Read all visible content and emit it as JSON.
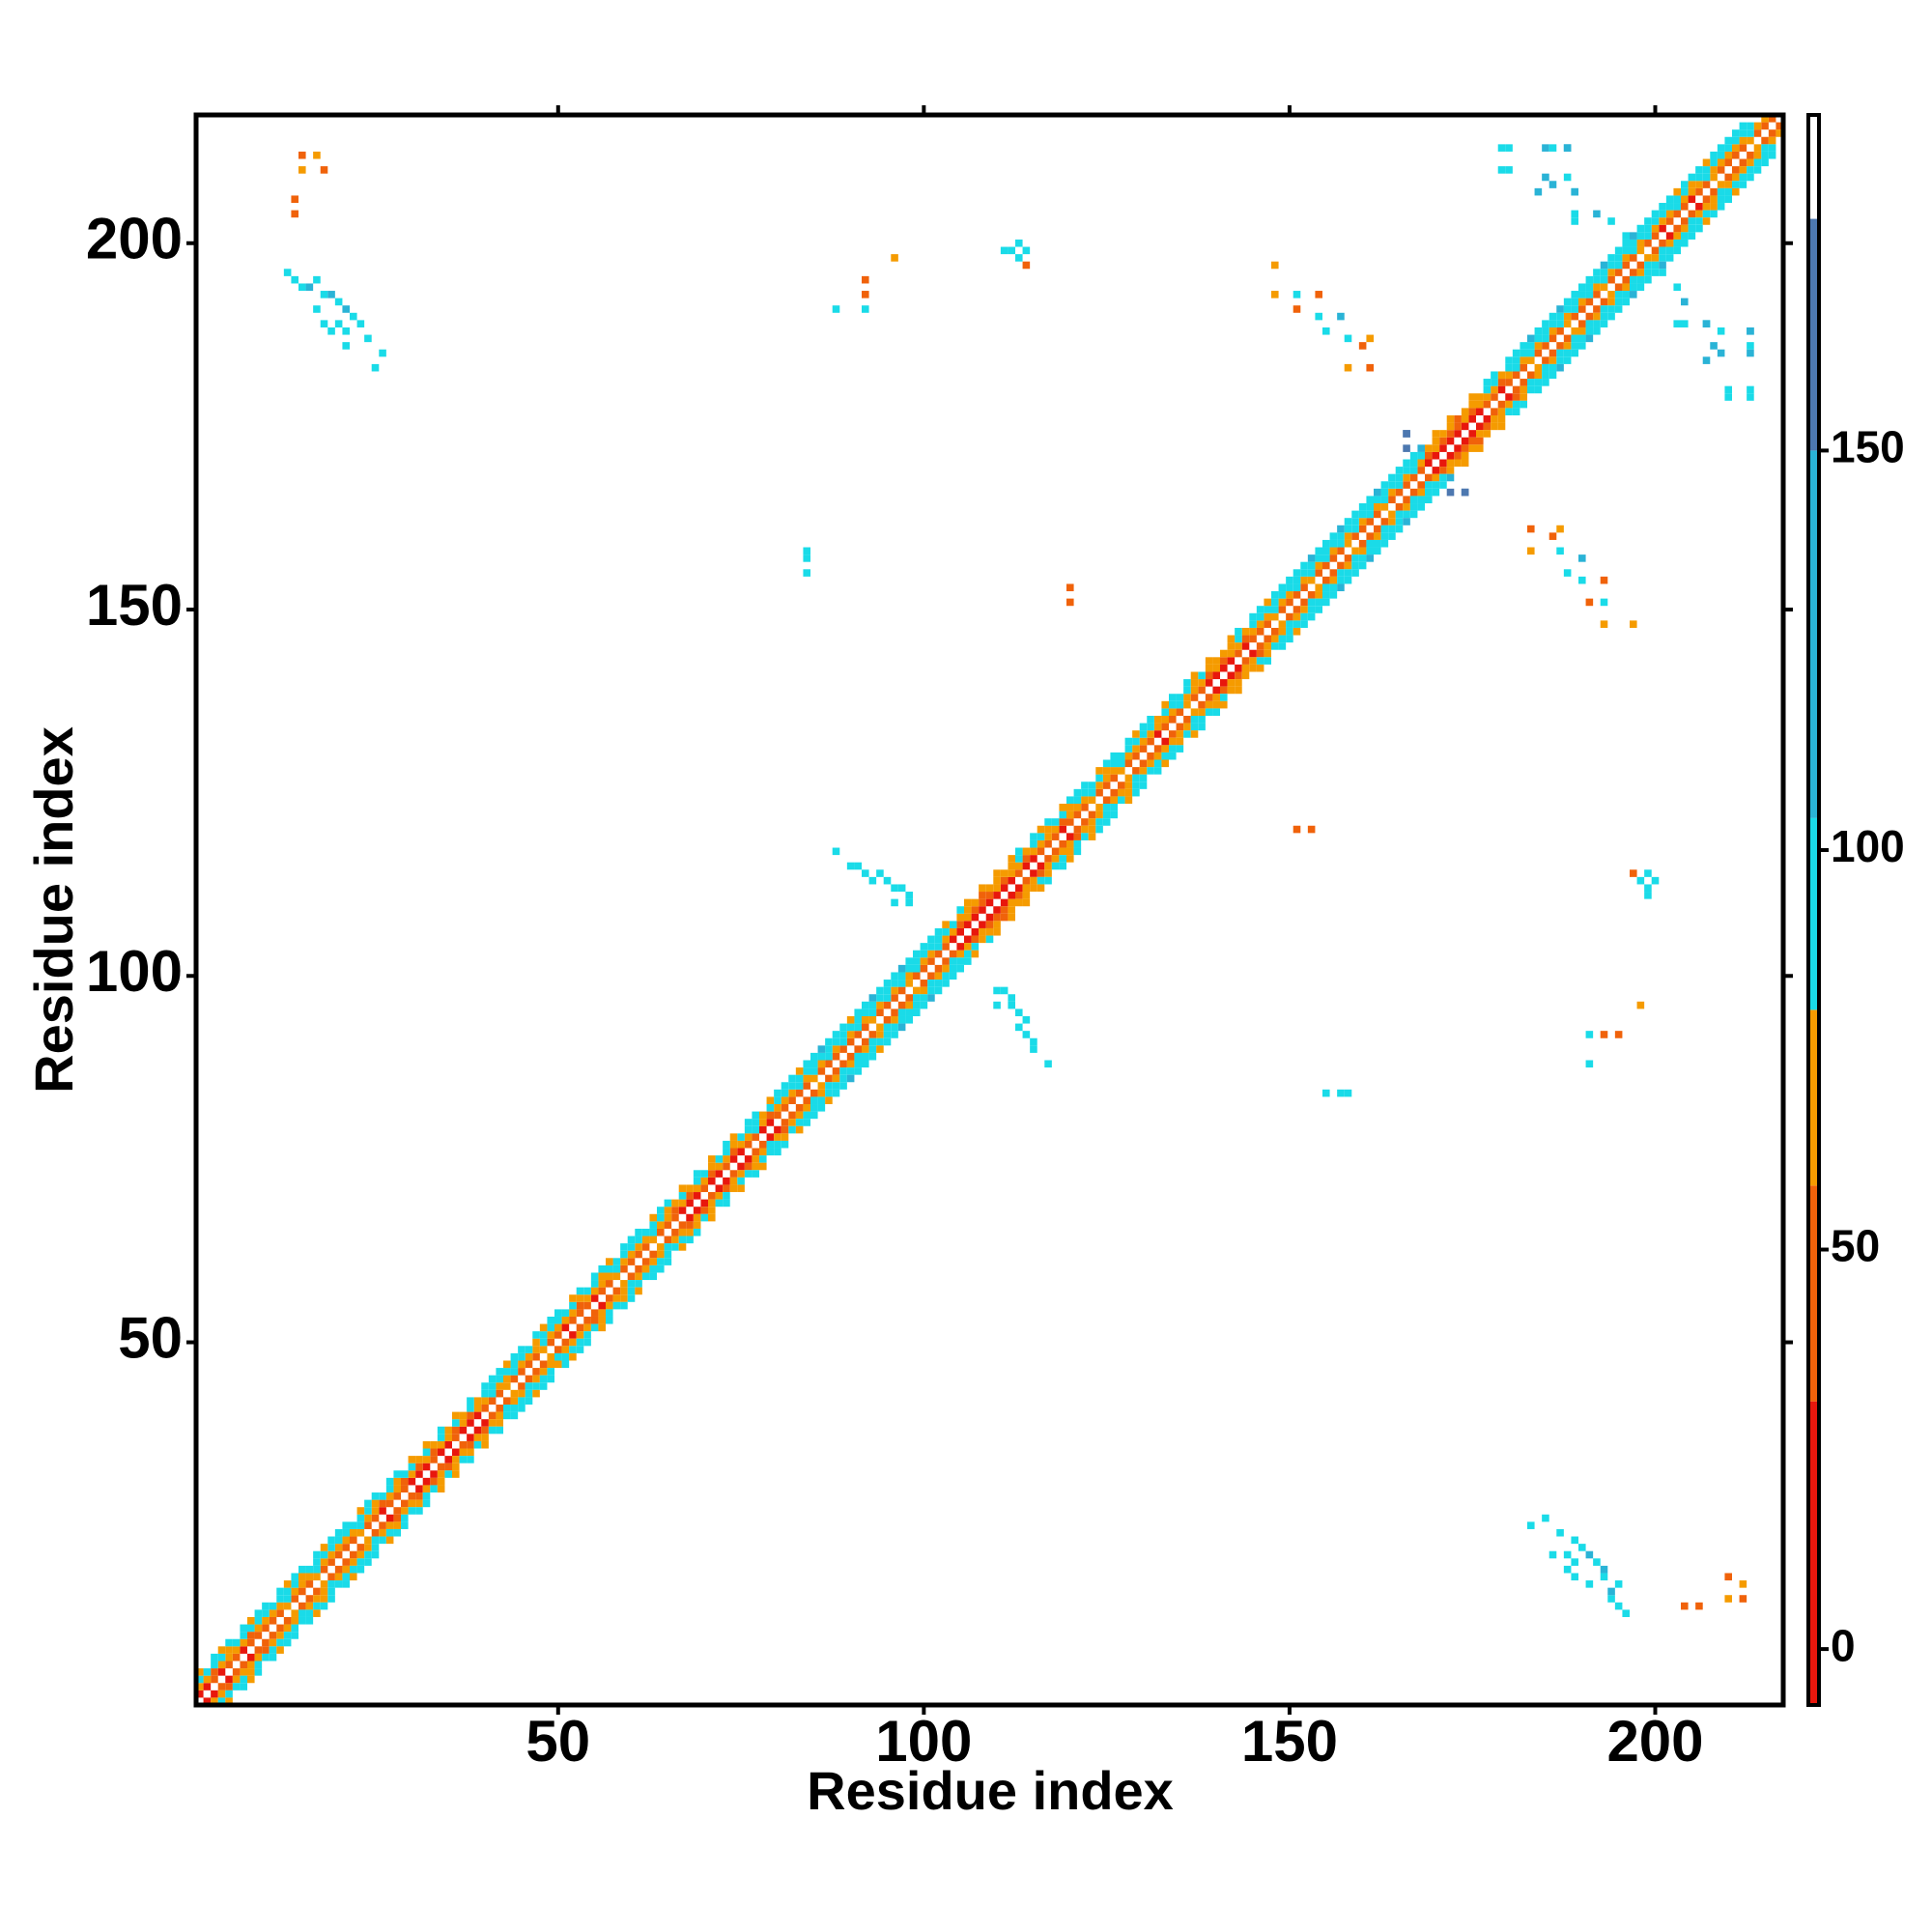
{
  "chart_data": {
    "type": "contact-map",
    "x_label": "Residue index",
    "y_label": "Residue index",
    "xlim": [
      0.5,
      217.5
    ],
    "ylim": [
      0.5,
      217.5
    ],
    "xticks": [
      50,
      100,
      150,
      200
    ],
    "yticks": [
      50,
      100,
      150,
      200
    ],
    "symmetric": true,
    "colorbar": {
      "lim": [
        -7,
        192
      ],
      "ticks": [
        0,
        50,
        100,
        150
      ],
      "segments": [
        {
          "from": -7,
          "to": 31,
          "color": "#e8170d"
        },
        {
          "from": 31,
          "to": 58,
          "color": "#f0620a"
        },
        {
          "from": 58,
          "to": 80,
          "color": "#f59b00"
        },
        {
          "from": 80,
          "to": 104,
          "color": "#1adbe8"
        },
        {
          "from": 104,
          "to": 150,
          "color": "#2ab3d6"
        },
        {
          "from": 150,
          "to": 179,
          "color": "#4d78b0"
        },
        {
          "from": 179,
          "to": 192,
          "color": "#ffffff"
        }
      ]
    },
    "residues": [
      1,
      2,
      3,
      4,
      5,
      6,
      7,
      8,
      9,
      10,
      11,
      12,
      13,
      14,
      15,
      16,
      17,
      18,
      19,
      20,
      21,
      22,
      23,
      24,
      25,
      26,
      27,
      28,
      29,
      30,
      31,
      32,
      33,
      34,
      35,
      36,
      37,
      38,
      39,
      40,
      41,
      42,
      43,
      44,
      45,
      46,
      47,
      48,
      49,
      50,
      51,
      52,
      53,
      54,
      55,
      56,
      57,
      58,
      59,
      60,
      61,
      62,
      63,
      64,
      65,
      66,
      67,
      68,
      69,
      70,
      71,
      72,
      73,
      74,
      75,
      76,
      77,
      78,
      79,
      80,
      81,
      82,
      83,
      84,
      85,
      86,
      87,
      88,
      89,
      90,
      91,
      92,
      93,
      94,
      95,
      96,
      97,
      98,
      99,
      100,
      101,
      102,
      103,
      104,
      105,
      106,
      107,
      108,
      109,
      110,
      111,
      112,
      113,
      114,
      115,
      116,
      117,
      118,
      119,
      120,
      121,
      122,
      123,
      124,
      125,
      126,
      127,
      128,
      129,
      130,
      131,
      132,
      133,
      134,
      135,
      136,
      137,
      138,
      139,
      140,
      141,
      142,
      143,
      144,
      145,
      146,
      147,
      148,
      149,
      150,
      151,
      152,
      153,
      154,
      155,
      156,
      157,
      158,
      159,
      160,
      161,
      162,
      163,
      164,
      165,
      166,
      167,
      168,
      169,
      170,
      171,
      172,
      173,
      174,
      175,
      176,
      177,
      178,
      179,
      180,
      181,
      182,
      183,
      184,
      185,
      186,
      187,
      188,
      189,
      190,
      191,
      192,
      193,
      194,
      195,
      196,
      197,
      198,
      199,
      200,
      201,
      202,
      203,
      204,
      205,
      206,
      207,
      208,
      209,
      210,
      211,
      212,
      213,
      214,
      215,
      216,
      217
    ],
    "band": {
      "offsets": [
        1,
        2,
        3,
        4
      ],
      "values": [
        [
          15,
          25,
          40,
          15,
          45,
          40,
          25,
          45,
          40,
          45,
          40,
          45,
          65,
          40,
          45,
          40,
          65,
          45,
          40,
          45,
          40,
          45,
          65,
          40,
          45,
          25,
          40,
          45,
          40,
          25,
          15,
          25,
          40,
          15,
          25,
          40,
          15,
          25,
          15,
          40,
          45,
          40,
          65,
          45,
          40,
          45,
          40,
          65,
          45,
          40,
          25,
          40,
          45,
          40,
          25,
          45,
          40,
          65,
          45,
          40,
          40,
          45,
          65,
          40,
          45,
          40,
          25,
          15,
          25,
          40,
          15,
          25,
          40,
          15,
          25,
          45,
          40,
          25,
          15,
          40,
          40,
          45,
          40,
          45,
          65,
          40,
          45,
          40,
          45,
          40,
          45,
          40,
          65,
          45,
          40,
          45,
          40,
          65,
          45,
          40,
          40,
          45,
          40,
          25,
          15,
          25,
          15,
          10,
          15,
          25,
          15,
          25,
          40,
          15,
          25,
          40,
          45,
          40,
          25,
          40,
          40,
          45,
          65,
          40,
          45,
          40,
          65,
          45,
          40,
          45,
          40,
          25,
          40,
          45,
          40,
          65,
          45,
          40,
          25,
          15,
          25,
          15,
          40,
          25,
          45,
          40,
          45,
          65,
          45,
          40,
          45,
          40,
          65,
          45,
          40,
          45,
          40,
          65,
          45,
          40,
          45,
          40,
          65,
          45,
          40,
          45,
          40,
          45,
          25,
          15,
          25,
          15,
          10,
          15,
          25,
          15,
          40,
          45,
          25,
          40,
          45,
          40,
          65,
          45,
          40,
          45,
          40,
          65,
          45,
          40,
          45,
          40,
          65,
          45,
          40,
          45,
          40,
          65,
          45,
          40,
          25,
          40,
          45,
          40,
          25,
          45,
          40,
          65,
          45,
          40,
          45,
          40,
          65,
          45,
          40,
          45,
          null
        ],
        [
          65,
          70,
          45,
          65,
          70,
          65,
          70,
          45,
          65,
          70,
          70,
          65,
          90,
          70,
          65,
          70,
          90,
          65,
          70,
          65,
          70,
          65,
          90,
          70,
          65,
          45,
          70,
          65,
          45,
          70,
          45,
          65,
          45,
          70,
          65,
          45,
          65,
          45,
          70,
          65,
          90,
          70,
          65,
          90,
          70,
          65,
          70,
          90,
          65,
          70,
          65,
          70,
          45,
          65,
          70,
          65,
          70,
          90,
          65,
          70,
          70,
          65,
          90,
          70,
          65,
          45,
          70,
          45,
          65,
          70,
          45,
          65,
          70,
          45,
          65,
          70,
          90,
          65,
          45,
          70,
          70,
          65,
          90,
          70,
          90,
          65,
          90,
          70,
          90,
          65,
          90,
          70,
          90,
          65,
          90,
          70,
          90,
          65,
          90,
          70,
          70,
          90,
          65,
          70,
          45,
          65,
          45,
          40,
          45,
          65,
          45,
          65,
          70,
          45,
          65,
          70,
          65,
          70,
          45,
          65,
          70,
          65,
          90,
          70,
          65,
          70,
          90,
          65,
          70,
          65,
          70,
          65,
          70,
          65,
          90,
          70,
          65,
          70,
          45,
          65,
          45,
          65,
          70,
          45,
          65,
          70,
          65,
          90,
          70,
          65,
          90,
          70,
          90,
          65,
          90,
          70,
          90,
          65,
          90,
          70,
          90,
          70,
          90,
          65,
          90,
          70,
          90,
          65,
          45,
          65,
          45,
          40,
          45,
          65,
          45,
          65,
          70,
          65,
          45,
          70,
          90,
          70,
          90,
          65,
          90,
          70,
          90,
          65,
          90,
          70,
          90,
          70,
          90,
          65,
          90,
          70,
          90,
          65,
          90,
          70,
          70,
          65,
          90,
          70,
          65,
          70,
          90,
          65,
          70,
          65,
          70,
          65,
          90,
          70,
          65,
          null,
          null
        ],
        [
          90,
          95,
          100,
          90,
          70,
          95,
          90,
          100,
          95,
          90,
          95,
          90,
          100,
          95,
          70,
          90,
          95,
          100,
          90,
          95,
          90,
          95,
          100,
          90,
          70,
          95,
          90,
          70,
          95,
          90,
          70,
          90,
          65,
          95,
          70,
          90,
          65,
          95,
          70,
          90,
          95,
          100,
          90,
          95,
          100,
          90,
          70,
          95,
          90,
          100,
          90,
          95,
          70,
          90,
          95,
          70,
          90,
          95,
          100,
          90,
          95,
          90,
          100,
          95,
          70,
          65,
          90,
          70,
          95,
          90,
          70,
          95,
          90,
          70,
          95,
          100,
          90,
          70,
          95,
          90,
          95,
          100,
          90,
          95,
          100,
          90,
          95,
          100,
          90,
          95,
          100,
          95,
          90,
          100,
          95,
          100,
          90,
          95,
          100,
          95,
          95,
          100,
          90,
          95,
          70,
          65,
          70,
          45,
          70,
          65,
          70,
          65,
          95,
          70,
          90,
          95,
          70,
          95,
          90,
          70,
          95,
          90,
          100,
          95,
          70,
          90,
          95,
          100,
          90,
          95,
          90,
          70,
          95,
          90,
          100,
          95,
          70,
          90,
          70,
          65,
          70,
          65,
          95,
          70,
          90,
          95,
          100,
          95,
          90,
          100,
          95,
          100,
          90,
          95,
          100,
          90,
          95,
          100,
          90,
          95,
          100,
          95,
          90,
          100,
          95,
          100,
          90,
          95,
          70,
          65,
          70,
          65,
          45,
          70,
          65,
          70,
          95,
          90,
          70,
          95,
          100,
          95,
          90,
          100,
          95,
          100,
          90,
          95,
          100,
          95,
          100,
          95,
          90,
          100,
          95,
          100,
          90,
          95,
          100,
          95,
          95,
          100,
          90,
          95,
          70,
          90,
          95,
          100,
          90,
          95,
          90,
          95,
          100,
          null,
          null,
          null,
          null
        ],
        [
          70,
          null,
          95,
          70,
          100,
          null,
          95,
          70,
          100,
          95,
          null,
          95,
          70,
          100,
          95,
          null,
          100,
          70,
          95,
          100,
          95,
          null,
          70,
          100,
          95,
          null,
          95,
          100,
          null,
          70,
          null,
          70,
          null,
          95,
          null,
          70,
          null,
          95,
          null,
          100,
          100,
          95,
          70,
          100,
          95,
          null,
          95,
          70,
          100,
          95,
          null,
          70,
          95,
          null,
          100,
          95,
          70,
          null,
          95,
          100,
          95,
          null,
          70,
          100,
          95,
          null,
          70,
          null,
          95,
          null,
          70,
          null,
          95,
          70,
          null,
          100,
          95,
          null,
          70,
          95,
          100,
          95,
          70,
          100,
          95,
          110,
          100,
          95,
          100,
          70,
          100,
          95,
          110,
          100,
          95,
          100,
          110,
          95,
          100,
          95,
          100,
          95,
          70,
          null,
          95,
          70,
          null,
          70,
          null,
          70,
          null,
          70,
          95,
          null,
          100,
          70,
          95,
          null,
          70,
          95,
          100,
          95,
          null,
          70,
          95,
          100,
          null,
          95,
          70,
          100,
          95,
          null,
          70,
          100,
          null,
          95,
          70,
          null,
          70,
          null,
          null,
          70,
          95,
          null,
          95,
          100,
          70,
          95,
          100,
          95,
          100,
          95,
          110,
          100,
          95,
          100,
          110,
          95,
          100,
          95,
          100,
          110,
          95,
          100,
          95,
          100,
          95,
          110,
          null,
          70,
          null,
          70,
          null,
          null,
          70,
          null,
          95,
          100,
          null,
          95,
          100,
          95,
          110,
          100,
          95,
          100,
          110,
          95,
          100,
          95,
          100,
          95,
          110,
          100,
          95,
          100,
          110,
          95,
          100,
          95,
          95,
          100,
          70,
          95,
          100,
          95,
          70,
          100,
          95,
          100,
          95,
          100,
          null,
          null,
          null,
          null,
          null
        ]
      ]
    },
    "contacts": {
      "x": [
        15,
        17,
        15,
        18,
        14,
        14,
        13,
        14,
        15,
        16,
        17,
        18,
        19,
        20,
        17,
        21,
        22,
        18,
        20,
        23,
        19,
        21,
        24,
        21,
        26,
        25,
        88,
        90,
        91,
        92,
        93,
        94,
        95,
        96,
        97,
        98,
        96,
        98,
        111,
        112,
        113,
        114,
        113,
        114,
        84,
        84,
        84,
        120,
        120,
        96,
        92,
        92,
        88,
        92,
        148,
        148,
        151,
        151,
        154,
        154,
        155,
        157,
        158,
        160,
        161,
        161,
        158,
        179,
        179,
        185,
        188,
        185,
        188,
        189,
        189,
        192,
        194,
        196,
        184,
        203,
        207,
        213,
        208,
        213,
        210,
        213,
        166,
        166,
        174
      ],
      "y": [
        212,
        212,
        210,
        210,
        206,
        204,
        196,
        195,
        194,
        194,
        195,
        193,
        193,
        192,
        191,
        191,
        190,
        189,
        189,
        189,
        188,
        188,
        187,
        186,
        185,
        183,
        117,
        115,
        115,
        114,
        113,
        114,
        113,
        112,
        112,
        111,
        110,
        110,
        199,
        199,
        200,
        199,
        198,
        197,
        158,
        157,
        155,
        153,
        151,
        198,
        195,
        193,
        191,
        191,
        197,
        193,
        193,
        191,
        193,
        190,
        188,
        190,
        187,
        186,
        187,
        183,
        183,
        213,
        210,
        213,
        213,
        209,
        209,
        207,
        204,
        204,
        203,
        201,
        207,
        189,
        189,
        188,
        186,
        186,
        180,
        180,
        174,
        172,
        166
      ],
      "values": [
        45,
        65,
        65,
        45,
        45,
        40,
        90,
        95,
        95,
        130,
        95,
        95,
        130,
        95,
        90,
        130,
        95,
        95,
        90,
        95,
        95,
        95,
        95,
        90,
        95,
        90,
        90,
        95,
        95,
        95,
        100,
        95,
        95,
        95,
        100,
        95,
        90,
        95,
        95,
        95,
        95,
        95,
        90,
        45,
        95,
        95,
        90,
        45,
        45,
        65,
        45,
        45,
        90,
        90,
        65,
        65,
        90,
        45,
        45,
        90,
        95,
        130,
        90,
        45,
        65,
        45,
        65,
        90,
        95,
        130,
        130,
        130,
        95,
        95,
        90,
        130,
        95,
        95,
        130,
        95,
        130,
        130,
        130,
        95,
        90,
        90,
        160,
        160,
        160
      ]
    }
  }
}
